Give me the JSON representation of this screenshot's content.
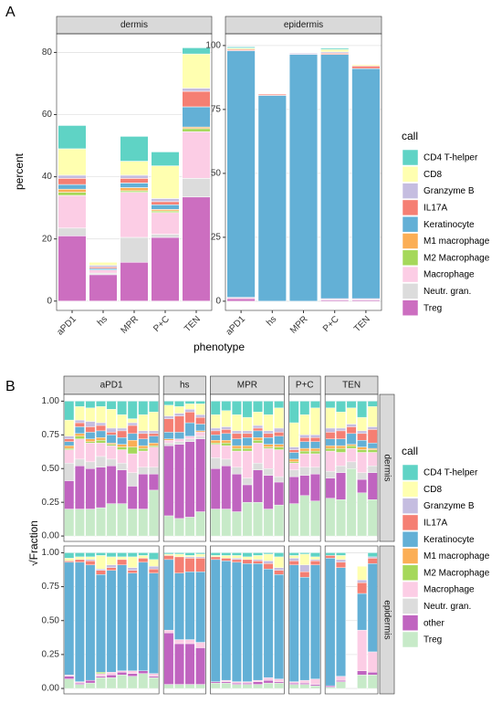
{
  "chart_data": [
    {
      "type": "bar",
      "stacked": true,
      "panel_label": "A",
      "x_label": "phenotype",
      "y_label": "percent",
      "legend_title": "call",
      "categories": [
        "aPD1",
        "hs",
        "MPR",
        "P+C",
        "TEN"
      ],
      "series": [
        {
          "name": "CD4 T-helper",
          "color": "#5fd3c5"
        },
        {
          "name": "CD8",
          "color": "#ffffb0"
        },
        {
          "name": "Granzyme B",
          "color": "#c5bde0"
        },
        {
          "name": "IL17A",
          "color": "#f57f73"
        },
        {
          "name": "Keratinocyte",
          "color": "#63b0d6"
        },
        {
          "name": "M1 macrophage",
          "color": "#fbae55"
        },
        {
          "name": "M2 Macrophage",
          "color": "#a5d85a"
        },
        {
          "name": "Macrophage",
          "color": "#fccde5"
        },
        {
          "name": "Neutr. gran.",
          "color": "#dcdcdc"
        },
        {
          "name": "Treg",
          "color": "#cc6ec0"
        }
      ],
      "facets": [
        {
          "name": "dermis",
          "ylim": [
            -3,
            86
          ],
          "yticks": [
            0,
            20,
            40,
            60,
            80
          ],
          "values": [
            [
              7.5,
              0,
              8,
              4.5,
              2
            ],
            [
              8.5,
              1,
              4.5,
              10.5,
              11
            ],
            [
              1,
              0.5,
              1,
              1,
              1
            ],
            [
              2,
              0.5,
              1.5,
              1,
              5
            ],
            [
              1.5,
              0.5,
              1.5,
              1.5,
              6.5
            ],
            [
              1,
              0,
              1,
              0.5,
              0.5
            ],
            [
              1,
              0,
              0.5,
              0.5,
              1
            ],
            [
              10.5,
              1,
              14.5,
              7,
              15
            ],
            [
              2.5,
              0.5,
              8,
              1,
              6
            ],
            [
              21,
              8.5,
              12.5,
              20.5,
              33.5
            ]
          ]
        },
        {
          "name": "epidermis",
          "ylim": [
            -3.6,
            104.6
          ],
          "yticks": [
            0,
            25,
            50,
            75,
            100
          ],
          "values": [
            [
              0.5,
              0,
              0,
              0.5,
              0
            ],
            [
              0.5,
              0,
              0,
              1,
              0.5
            ],
            [
              0,
              0,
              0.5,
              0.5,
              0
            ],
            [
              0.5,
              0.5,
              0,
              0.5,
              1
            ],
            [
              96.5,
              80.5,
              96.5,
              95.5,
              90
            ],
            [
              0,
              0,
              0,
              0,
              0
            ],
            [
              0,
              0,
              0,
              0,
              0
            ],
            [
              0.5,
              0,
              0,
              0.5,
              0.5
            ],
            [
              0,
              0,
              0,
              0,
              0
            ],
            [
              1,
              0,
              0,
              0.5,
              0.5
            ]
          ]
        }
      ]
    },
    {
      "type": "bar",
      "stacked": true,
      "panel_label": "B",
      "y_label": "√Fraction",
      "legend_title": "call",
      "ylim": [
        -0.04,
        1.05
      ],
      "yticks": [
        {
          "value": 0,
          "label": "0.00"
        },
        {
          "value": 0.25,
          "label": "0.25"
        },
        {
          "value": 0.5,
          "label": "0.50"
        },
        {
          "value": 0.75,
          "label": "0.75"
        },
        {
          "value": 1,
          "label": "1.00"
        }
      ],
      "columns": [
        "aPD1",
        "hs",
        "MPR",
        "P+C",
        "TEN"
      ],
      "rows": [
        "dermis",
        "epidermis"
      ],
      "series": [
        {
          "name": "CD4 T-helper",
          "color": "#5fd3c5"
        },
        {
          "name": "CD8",
          "color": "#ffffb0"
        },
        {
          "name": "Granzyme B",
          "color": "#c5bde0"
        },
        {
          "name": "IL17A",
          "color": "#f57f73"
        },
        {
          "name": "Keratinocyte",
          "color": "#63b0d6"
        },
        {
          "name": "M1 macrophage",
          "color": "#fbae55"
        },
        {
          "name": "M2 Macrophage",
          "color": "#a5d85a"
        },
        {
          "name": "Macrophage",
          "color": "#fccde5"
        },
        {
          "name": "Neutr. gran.",
          "color": "#dcdcdc"
        },
        {
          "name": "other",
          "color": "#c064c0"
        },
        {
          "name": "Treg",
          "color": "#c7eac8"
        }
      ],
      "panels": [
        [
          [
            [
              0.14,
              0.12,
              0.02,
              0.02,
              0.03,
              0.02,
              0.01,
              0.1,
              0.13,
              0.21,
              0.2
            ],
            [
              0.04,
              0.1,
              0.02,
              0.03,
              0.05,
              0.02,
              0.02,
              0.15,
              0.05,
              0.32,
              0.2
            ],
            [
              0.05,
              0.1,
              0.04,
              0.04,
              0.05,
              0.02,
              0.01,
              0.14,
              0.05,
              0.3,
              0.2
            ],
            [
              0.04,
              0.12,
              0.02,
              0.04,
              0.05,
              0.02,
              0.02,
              0.1,
              0.08,
              0.3,
              0.21
            ],
            [
              0.06,
              0.14,
              0.03,
              0.02,
              0.06,
              0.01,
              0.01,
              0.1,
              0.05,
              0.28,
              0.24
            ],
            [
              0.1,
              0.1,
              0.02,
              0.05,
              0.05,
              0.02,
              0.02,
              0.1,
              0.05,
              0.25,
              0.24
            ],
            [
              0.13,
              0.03,
              0.02,
              0.06,
              0.05,
              0.05,
              0.05,
              0.14,
              0.1,
              0.17,
              0.2
            ],
            [
              0.1,
              0.12,
              0.02,
              0.04,
              0.05,
              0.02,
              0.02,
              0.12,
              0.05,
              0.26,
              0.2
            ],
            [
              0.08,
              0.14,
              0.02,
              0.02,
              0.05,
              0.02,
              0.01,
              0.15,
              0.05,
              0.12,
              0.34
            ]
          ],
          [
            [
              0.03,
              0.08,
              0.02,
              0.1,
              0.05,
              0.01,
              0,
              0.02,
              0.02,
              0.52,
              0.15
            ],
            [
              0.04,
              0.05,
              0.02,
              0.12,
              0.05,
              0,
              0,
              0.02,
              0.02,
              0.55,
              0.13
            ],
            [
              0.02,
              0.04,
              0.02,
              0.08,
              0.1,
              0,
              0,
              0.02,
              0.02,
              0.56,
              0.14
            ],
            [
              0.02,
              0.08,
              0.02,
              0.05,
              0.05,
              0.01,
              0,
              0.03,
              0.02,
              0.54,
              0.18
            ]
          ],
          [
            [
              0.1,
              0.1,
              0.02,
              0.03,
              0.04,
              0.02,
              0.01,
              0.1,
              0.08,
              0.3,
              0.2
            ],
            [
              0.07,
              0.12,
              0.02,
              0.03,
              0.05,
              0.02,
              0.02,
              0.1,
              0.05,
              0.32,
              0.2
            ],
            [
              0.1,
              0.12,
              0.02,
              0.04,
              0.05,
              0.02,
              0.02,
              0.12,
              0.05,
              0.28,
              0.18
            ],
            [
              0.12,
              0.1,
              0.02,
              0.03,
              0.06,
              0.02,
              0.02,
              0.2,
              0.05,
              0.13,
              0.25
            ],
            [
              0.08,
              0.1,
              0.02,
              0.02,
              0.05,
              0.02,
              0.02,
              0.15,
              0.05,
              0.24,
              0.25
            ],
            [
              0.1,
              0.12,
              0.02,
              0.03,
              0.05,
              0.02,
              0.01,
              0.15,
              0.05,
              0.25,
              0.2
            ],
            [
              0.05,
              0.15,
              0.03,
              0.03,
              0.06,
              0.02,
              0.02,
              0.2,
              0.04,
              0.17,
              0.23
            ]
          ],
          [
            [
              0.16,
              0.18,
              0.02,
              0.02,
              0.05,
              0.02,
              0.01,
              0.05,
              0.05,
              0.2,
              0.24
            ],
            [
              0.1,
              0.15,
              0.02,
              0.03,
              0.05,
              0.02,
              0.02,
              0.1,
              0.06,
              0.15,
              0.3
            ],
            [
              0.05,
              0.2,
              0.02,
              0.03,
              0.05,
              0.02,
              0.02,
              0.1,
              0.05,
              0.2,
              0.26
            ]
          ],
          [
            [
              0.05,
              0.15,
              0.03,
              0.05,
              0.05,
              0.02,
              0.02,
              0.15,
              0.05,
              0.15,
              0.28
            ],
            [
              0.08,
              0.12,
              0.02,
              0.06,
              0.05,
              0.02,
              0.03,
              0.1,
              0.05,
              0.2,
              0.27
            ],
            [
              0.05,
              0.12,
              0.02,
              0.05,
              0.08,
              0.01,
              0.02,
              0.1,
              0.05,
              0,
              0.5
            ],
            [
              0.12,
              0.1,
              0.02,
              0.05,
              0.05,
              0.02,
              0.02,
              0.15,
              0.05,
              0.1,
              0.32
            ],
            [
              0.04,
              0.15,
              0.02,
              0.1,
              0.04,
              0.01,
              0.02,
              0.1,
              0.05,
              0.2,
              0.27
            ]
          ]
        ],
        [
          [
            [
              0.04,
              0.02,
              0,
              0.01,
              0.83,
              0,
              0,
              0.01,
              0,
              0.02,
              0.07
            ],
            [
              0.03,
              0.02,
              0,
              0.02,
              0.88,
              0,
              0,
              0.01,
              0,
              0.01,
              0.03
            ],
            [
              0.03,
              0.02,
              0.01,
              0.03,
              0.85,
              0,
              0,
              0,
              0,
              0.02,
              0.04
            ],
            [
              0.02,
              0.1,
              0.01,
              0.03,
              0.72,
              0,
              0.01,
              0.02,
              0,
              0.01,
              0.08
            ],
            [
              0.03,
              0.06,
              0.02,
              0.02,
              0.75,
              0,
              0,
              0.02,
              0,
              0.02,
              0.08
            ],
            [
              0.03,
              0.02,
              0,
              0.04,
              0.78,
              0,
              0,
              0.01,
              0,
              0.02,
              0.1
            ],
            [
              0.03,
              0.08,
              0.02,
              0.02,
              0.72,
              0,
              0,
              0.02,
              0,
              0.02,
              0.09
            ],
            [
              0.02,
              0.02,
              0,
              0.03,
              0.8,
              0,
              0,
              0,
              0,
              0.02,
              0.11
            ],
            [
              0.05,
              0.05,
              0.02,
              0.03,
              0.74,
              0,
              0,
              0.02,
              0,
              0.01,
              0.08
            ]
          ],
          [
            [
              0.01,
              0.01,
              0,
              0.03,
              0.52,
              0,
              0,
              0.02,
              0,
              0.38,
              0.03
            ],
            [
              0.01,
              0.02,
              0,
              0.12,
              0.49,
              0,
              0,
              0.03,
              0,
              0.3,
              0.03
            ],
            [
              0.02,
              0.01,
              0.01,
              0.1,
              0.5,
              0,
              0,
              0.03,
              0,
              0.3,
              0.03
            ],
            [
              0.01,
              0.02,
              0.01,
              0.1,
              0.52,
              0,
              0,
              0.04,
              0,
              0.27,
              0.03
            ]
          ],
          [
            [
              0.02,
              0.01,
              0,
              0.02,
              0.9,
              0,
              0,
              0,
              0,
              0.01,
              0.04
            ],
            [
              0.02,
              0.02,
              0,
              0.02,
              0.88,
              0,
              0,
              0.01,
              0,
              0.01,
              0.04
            ],
            [
              0.02,
              0.02,
              0.01,
              0.02,
              0.88,
              0,
              0,
              0.01,
              0,
              0.01,
              0.03
            ],
            [
              0.03,
              0.02,
              0,
              0.03,
              0.87,
              0,
              0,
              0.01,
              0,
              0.01,
              0.03
            ],
            [
              0.02,
              0.03,
              0.01,
              0.02,
              0.86,
              0,
              0,
              0.01,
              0,
              0.02,
              0.03
            ],
            [
              0.01,
              0.05,
              0.02,
              0.04,
              0.8,
              0,
              0,
              0.02,
              0,
              0.02,
              0.04
            ],
            [
              0.03,
              0.08,
              0.02,
              0.03,
              0.77,
              0,
              0,
              0.02,
              0,
              0.01,
              0.04
            ]
          ],
          [
            [
              0.02,
              0.02,
              0.02,
              0.03,
              0.86,
              0,
              0,
              0.01,
              0,
              0.01,
              0.03
            ],
            [
              0.01,
              0.08,
              0.05,
              0.04,
              0.76,
              0,
              0,
              0.02,
              0,
              0.01,
              0.03
            ],
            [
              0.03,
              0.02,
              0.01,
              0.03,
              0.84,
              0,
              0,
              0.04,
              0,
              0.01,
              0.02
            ]
          ],
          [
            [
              0.02,
              0,
              0,
              0.02,
              0.94,
              0,
              0,
              0,
              0,
              0.01,
              0.01
            ],
            [
              0.02,
              0.03,
              0.02,
              0.04,
              0.8,
              0,
              0,
              0.03,
              0,
              0.01,
              0.05
            ],
            null,
            [
              0,
              0.1,
              0.02,
              0.08,
              0.27,
              0,
              0,
              0.3,
              0,
              0.03,
              0.1
            ],
            [
              0.03,
              0,
              0.01,
              0.04,
              0.65,
              0,
              0,
              0.15,
              0,
              0.02,
              0.1
            ]
          ]
        ]
      ]
    }
  ]
}
